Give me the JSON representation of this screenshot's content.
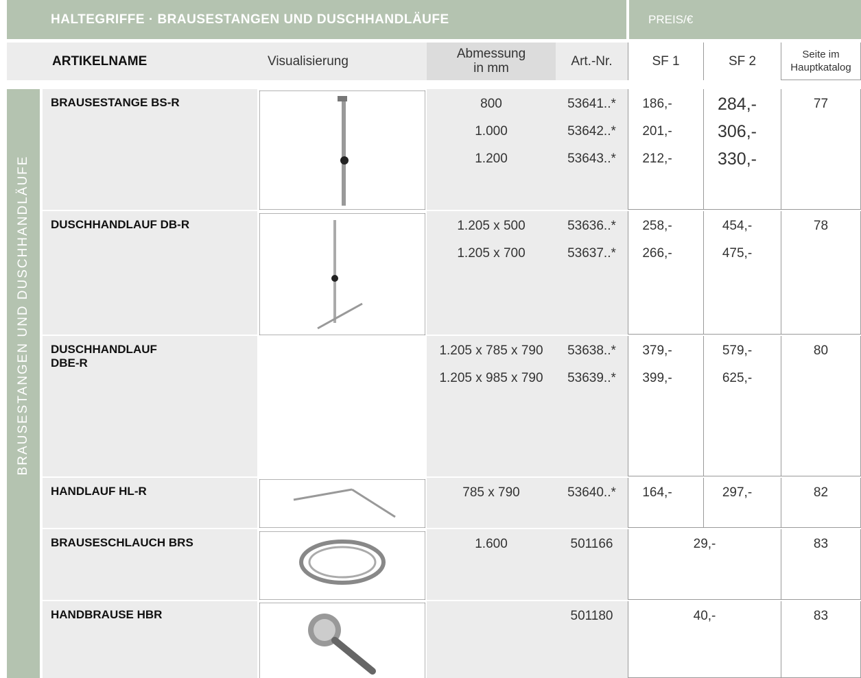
{
  "header": {
    "title": "HALTEGRIFFE · BRAUSESTANGEN UND DUSCHHANDLÄUFE",
    "price_label": "PREIS/€"
  },
  "columns": {
    "name": "ARTIKELNAME",
    "visual": "Visualisierung",
    "dimension": [
      "Abmessung",
      "in mm"
    ],
    "article_no": "Art.-Nr.",
    "sf1": "SF 1",
    "sf2": "SF 2",
    "page": [
      "Seite im",
      "Hauptkatalog"
    ]
  },
  "side_label": "BRAUSESTANGEN UND DUSCHHANDLÄUFE",
  "rows": [
    {
      "name": "BRAUSESTANGE BS-R",
      "lines": [
        {
          "dim": "800",
          "art": "53641..*",
          "sf1": "186,-",
          "sf2": "284,-"
        },
        {
          "dim": "1.000",
          "art": "53642..*",
          "sf1": "201,-",
          "sf2": "306,-"
        },
        {
          "dim": "1.200",
          "art": "53643..*",
          "sf1": "212,-",
          "sf2": "330,-"
        }
      ],
      "page": "77"
    },
    {
      "name": "DUSCHHANDLAUF DB-R",
      "lines": [
        {
          "dim": "1.205 x 500",
          "art": "53636..*",
          "sf1": "258,-",
          "sf2": "454,-"
        },
        {
          "dim": "1.205 x 700",
          "art": "53637..*",
          "sf1": "266,-",
          "sf2": "475,-"
        }
      ],
      "page": "78"
    },
    {
      "name": "DUSCHHANDLAUF DBE-R",
      "lines": [
        {
          "dim": "1.205 x 785 x 790",
          "art": "53638..*",
          "sf1": "379,-",
          "sf2": "579,-"
        },
        {
          "dim": "1.205 x 985 x 790",
          "art": "53639..*",
          "sf1": "399,-",
          "sf2": "625,-"
        }
      ],
      "page": "80"
    },
    {
      "name": "HANDLAUF HL-R",
      "lines": [
        {
          "dim": "785 x 790",
          "art": "53640..*",
          "sf1": "164,-",
          "sf2": "297,-"
        }
      ],
      "page": "82"
    },
    {
      "name": "BRAUSESCHLAUCH BRS",
      "lines": [
        {
          "dim": "1.600",
          "art": "501166",
          "price": "29,-"
        }
      ],
      "page": "83"
    },
    {
      "name": "HANDBRAUSE HBR",
      "lines": [
        {
          "art": "501180",
          "price": "40,-"
        }
      ],
      "page": "83"
    }
  ]
}
